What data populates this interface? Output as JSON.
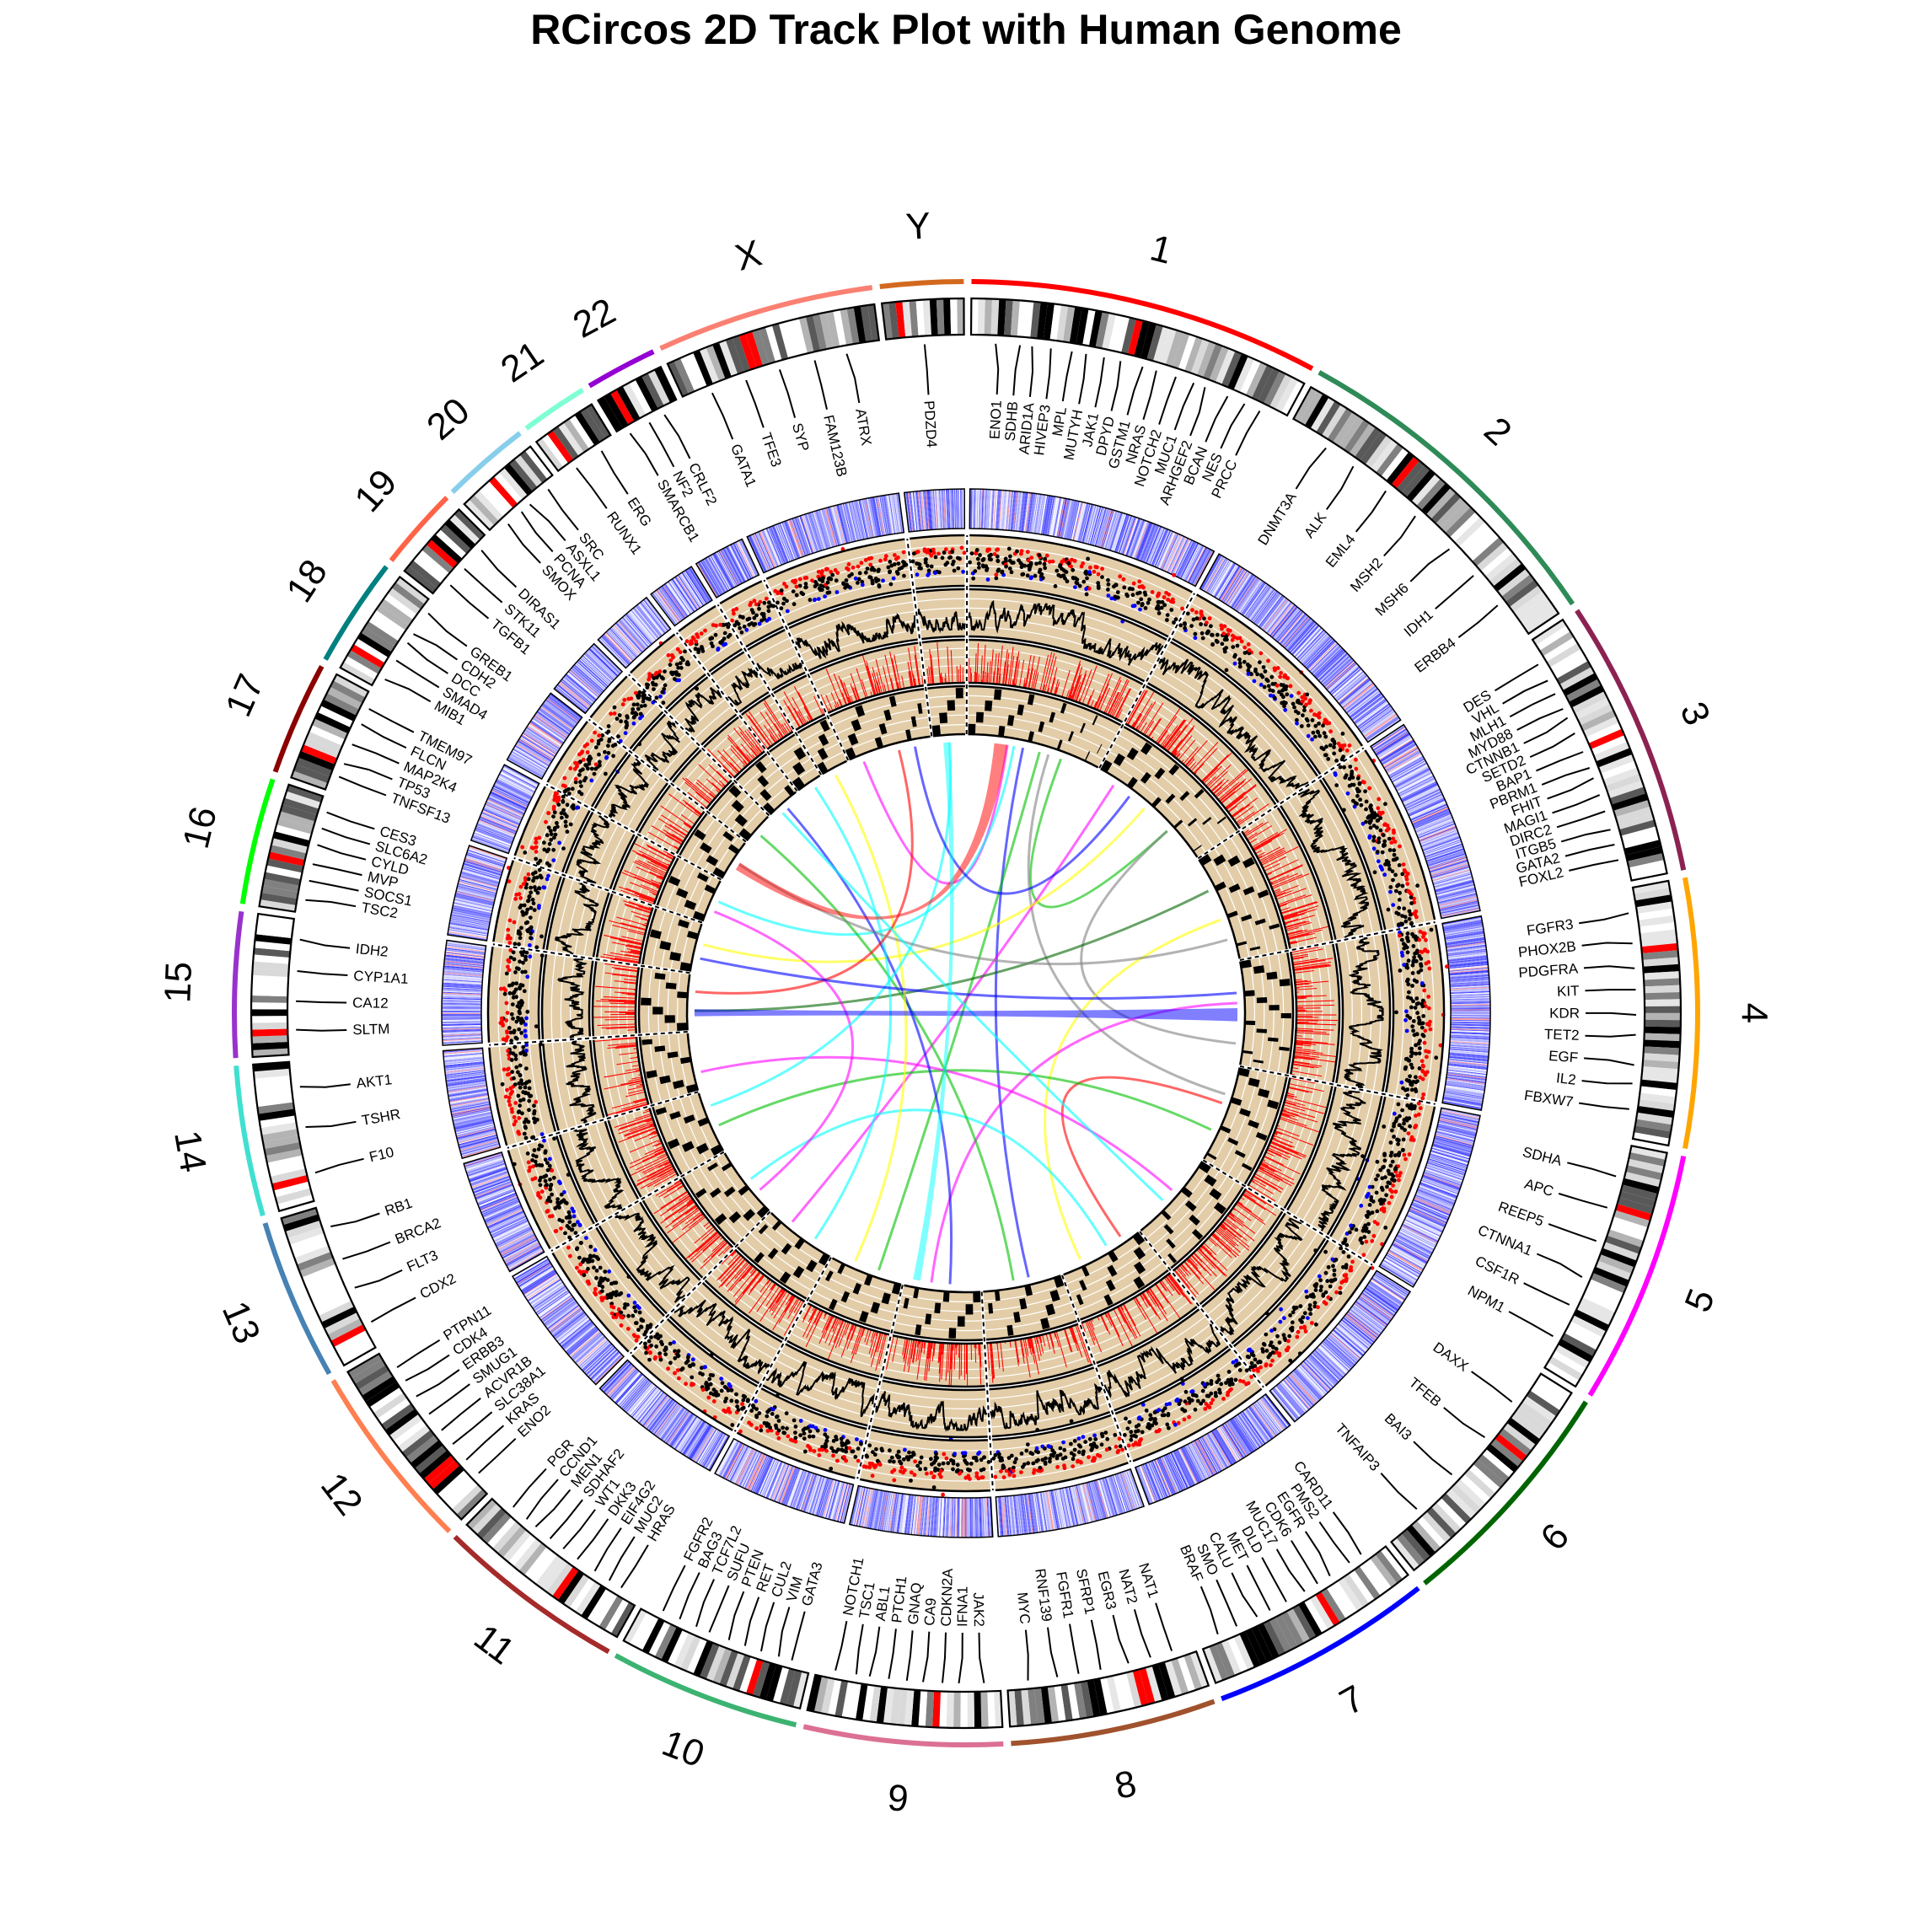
{
  "chart_data": {
    "type": "circos",
    "title": "RCircos 2D Track Plot with Human Genome",
    "genome": "Human",
    "chromosomes": [
      {
        "name": "1",
        "size": 249,
        "color": "#ff0000",
        "cen": 0.49
      },
      {
        "name": "2",
        "size": 243,
        "color": "#2e8b57",
        "cen": 0.38
      },
      {
        "name": "3",
        "size": 198,
        "color": "#8b2252",
        "cen": 0.46
      },
      {
        "name": "4",
        "size": 191,
        "color": "#ffa500",
        "cen": 0.26
      },
      {
        "name": "5",
        "size": 181,
        "color": "#ff00ff",
        "cen": 0.26
      },
      {
        "name": "6",
        "size": 171,
        "color": "#006400",
        "cen": 0.35
      },
      {
        "name": "7",
        "size": 159,
        "color": "#0000ff",
        "cen": 0.38
      },
      {
        "name": "8",
        "size": 146,
        "color": "#a0522d",
        "cen": 0.31
      },
      {
        "name": "9",
        "size": 141,
        "color": "#db7093",
        "cen": 0.35
      },
      {
        "name": "10",
        "size": 136,
        "color": "#3cb371",
        "cen": 0.29
      },
      {
        "name": "11",
        "size": 135,
        "color": "#a52a2a",
        "cen": 0.39
      },
      {
        "name": "12",
        "size": 134,
        "color": "#ff7f50",
        "cen": 0.26
      },
      {
        "name": "13",
        "size": 115,
        "color": "#4682b4",
        "cen": 0.15
      },
      {
        "name": "14",
        "size": 107,
        "color": "#40e0d0",
        "cen": 0.16
      },
      {
        "name": "15",
        "size": 103,
        "color": "#9932cc",
        "cen": 0.18
      },
      {
        "name": "16",
        "size": 90,
        "color": "#00ff00",
        "cen": 0.4
      },
      {
        "name": "17",
        "size": 81,
        "color": "#8b0000",
        "cen": 0.3
      },
      {
        "name": "18",
        "size": 78,
        "color": "#008080",
        "cen": 0.22
      },
      {
        "name": "19",
        "size": 59,
        "color": "#ff6347",
        "cen": 0.45
      },
      {
        "name": "20",
        "size": 63,
        "color": "#87ceeb",
        "cen": 0.44
      },
      {
        "name": "21",
        "size": 48,
        "color": "#7fffd4",
        "cen": 0.26
      },
      {
        "name": "22",
        "size": 51,
        "color": "#9400d3",
        "cen": 0.28
      },
      {
        "name": "X",
        "size": 155,
        "color": "#fa8072",
        "cen": 0.39
      },
      {
        "name": "Y",
        "size": 59,
        "color": "#d2691e",
        "cen": 0.2
      }
    ],
    "gene_labels": [
      {
        "chr": "1",
        "genes": [
          "ENO1",
          "SDHB",
          "ARID1A",
          "HIVEP3",
          "MPL",
          "MUTYH",
          "JAK1",
          "DPYD",
          "GSTM1",
          "NRAS",
          "NOTCH2",
          "MUC1",
          "ARHGEF2",
          "BCAN",
          "NES",
          "PRCC"
        ]
      },
      {
        "chr": "2",
        "genes": [
          "DNMT3A",
          "ALK",
          "EML4",
          "MSH2",
          "MSH6",
          "IDH1",
          "ERBB4"
        ]
      },
      {
        "chr": "3",
        "genes": [
          "DES",
          "VHL",
          "MLH1",
          "MYD88",
          "CTNNB1",
          "SETD2",
          "BAP1",
          "PBRM1",
          "FHIT",
          "MAGI1",
          "DIRC2",
          "ITGB5",
          "GATA2",
          "FOXL2"
        ]
      },
      {
        "chr": "4",
        "genes": [
          "FGFR3",
          "PHOX2B",
          "PDGFRA",
          "KIT",
          "KDR",
          "TET2",
          "EGF",
          "IL2",
          "FBXW7"
        ]
      },
      {
        "chr": "5",
        "genes": [
          "SDHA",
          "APC",
          "REEP5",
          "CTNNA1",
          "CSF1R",
          "NPM1"
        ]
      },
      {
        "chr": "6",
        "genes": [
          "DAXX",
          "TFEB",
          "BAI3",
          "TNFAIP3"
        ]
      },
      {
        "chr": "7",
        "genes": [
          "CARD11",
          "PMS2",
          "EGFR",
          "CDK6",
          "MUC17",
          "DLD",
          "MET",
          "CALU",
          "SMO",
          "BRAF"
        ]
      },
      {
        "chr": "8",
        "genes": [
          "NAT1",
          "NAT2",
          "EGR3",
          "SFRP1",
          "FGFR1",
          "RNF139",
          "MYC"
        ]
      },
      {
        "chr": "9",
        "genes": [
          "JAK2",
          "IFNA1",
          "CDKN2A",
          "CA9",
          "GNAQ",
          "PTCH1",
          "ABL1",
          "TSC1",
          "NOTCH1"
        ]
      },
      {
        "chr": "10",
        "genes": [
          "GATA3",
          "VIM",
          "CUL2",
          "RET",
          "PTEN",
          "SUFU",
          "TCF7L2",
          "BAG3",
          "FGFR2"
        ]
      },
      {
        "chr": "11",
        "genes": [
          "HRAS",
          "MUC2",
          "EIF4G2",
          "DKK3",
          "WT1",
          "SDHAF2",
          "MEN1",
          "CCND1",
          "PGR"
        ]
      },
      {
        "chr": "12",
        "genes": [
          "ENO2",
          "KRAS",
          "SLC38A1",
          "ACVR1B",
          "SMUG1",
          "ERBB3",
          "CDK4",
          "PTPN11"
        ]
      },
      {
        "chr": "13",
        "genes": [
          "CDX2",
          "FLT3",
          "BRCA2",
          "RB1"
        ]
      },
      {
        "chr": "14",
        "genes": [
          "F10",
          "TSHR",
          "AKT1"
        ]
      },
      {
        "chr": "15",
        "genes": [
          "SLTM",
          "CA12",
          "CYP1A1",
          "IDH2"
        ]
      },
      {
        "chr": "16",
        "genes": [
          "TSC2",
          "SOCS1",
          "MVP",
          "CYLD",
          "SLC6A2",
          "CES3"
        ]
      },
      {
        "chr": "17",
        "genes": [
          "TNFSF13",
          "TP53",
          "MAP2K4",
          "FLCN",
          "TMEM97"
        ]
      },
      {
        "chr": "18",
        "genes": [
          "MIB1",
          "SMAD4",
          "DCC",
          "CDH2",
          "GREB1"
        ]
      },
      {
        "chr": "19",
        "genes": [
          "TGFB1",
          "STK11",
          "DIRAS1"
        ]
      },
      {
        "chr": "20",
        "genes": [
          "SMOX",
          "PCNA",
          "ASXL1",
          "SRC"
        ]
      },
      {
        "chr": "21",
        "genes": [
          "RUNX1",
          "ERG"
        ]
      },
      {
        "chr": "22",
        "genes": [
          "SMARCB1",
          "NF2",
          "CRLF2"
        ]
      },
      {
        "chr": "X",
        "genes": [
          "GATA1",
          "TFE3",
          "SYP",
          "FAM123B",
          "ATRX"
        ]
      },
      {
        "chr": "Y",
        "genes": [
          "PDZD4"
        ]
      }
    ],
    "links": [
      {
        "a": [
          "1",
          0.3
        ],
        "b": [
          "X",
          0.15
        ],
        "color": "#ff00ff"
      },
      {
        "a": [
          "1",
          0.35
        ],
        "b": [
          "17",
          0.55
        ],
        "color": "#00ffff"
      },
      {
        "a": [
          "1",
          0.42
        ],
        "b": [
          "8",
          0.4
        ],
        "color": "#0000ff"
      },
      {
        "a": [
          "1",
          0.55
        ],
        "b": [
          "10",
          0.35
        ],
        "color": "#00c000"
      },
      {
        "a": [
          "1",
          0.62
        ],
        "b": [
          "5",
          0.3
        ],
        "color": "#808080"
      },
      {
        "a": [
          "1",
          0.72
        ],
        "b": [
          "2",
          0.7
        ],
        "color": "#00c000"
      },
      {
        "a": [
          "2",
          0.15
        ],
        "b": [
          "11",
          0.7
        ],
        "color": "#ff00ff"
      },
      {
        "a": [
          "2",
          0.45
        ],
        "b": [
          "16",
          0.6
        ],
        "color": "#ffff00"
      },
      {
        "a": [
          "2",
          0.7
        ],
        "b": [
          "4",
          0.8
        ],
        "color": "#808080"
      },
      {
        "a": [
          "3",
          0.3
        ],
        "b": [
          "15",
          0.35
        ],
        "color": "#006400"
      },
      {
        "a": [
          "3",
          0.6
        ],
        "b": [
          "7",
          0.75
        ],
        "color": "#ffff00"
      },
      {
        "a": [
          "4",
          0.4
        ],
        "b": [
          "9",
          0.65
        ],
        "color": "#ff00ff"
      },
      {
        "a": [
          "5",
          0.4
        ],
        "b": [
          "7",
          0.2
        ],
        "color": "#ff0000"
      },
      {
        "a": [
          "5",
          0.7
        ],
        "b": [
          "13",
          0.4
        ],
        "color": "#00c000"
      },
      {
        "a": [
          "6",
          0.45
        ],
        "b": [
          "14",
          0.3
        ],
        "color": "#ff00ff"
      },
      {
        "a": [
          "7",
          0.4
        ],
        "b": [
          "12",
          0.5
        ],
        "color": "#00ffff"
      },
      {
        "a": [
          "8",
          0.6
        ],
        "b": [
          "19",
          0.4
        ],
        "color": "#00c000"
      },
      {
        "a": [
          "9",
          0.4
        ],
        "b": [
          "20",
          0.5
        ],
        "color": "#0000ff"
      },
      {
        "a": [
          "10",
          0.7
        ],
        "b": [
          "22",
          0.4
        ],
        "color": "#ffff00"
      },
      {
        "a": [
          "11",
          0.3
        ],
        "b": [
          "21",
          0.6
        ],
        "color": "#00ffff"
      },
      {
        "a": [
          "12",
          0.3
        ],
        "b": [
          "17",
          0.3
        ],
        "color": "#ff00ff"
      },
      {
        "a": [
          "13",
          0.75
        ],
        "b": [
          "Y",
          0.5
        ],
        "color": "#00ffff"
      },
      {
        "a": [
          "15",
          0.7
        ],
        "b": [
          "X",
          0.6
        ],
        "color": "#ff0000"
      },
      {
        "a": [
          "16",
          0.3
        ],
        "b": [
          "4",
          0.3
        ],
        "color": "#0000ff"
      },
      {
        "a": [
          "18",
          0.5
        ],
        "b": [
          "3",
          0.8
        ],
        "color": "#808080"
      },
      {
        "a": [
          "20",
          0.3
        ],
        "b": [
          "6",
          0.6
        ],
        "color": "#00ffff"
      },
      {
        "a": [
          "X",
          0.8
        ],
        "b": [
          "2",
          0.3
        ],
        "color": "#0000ff"
      }
    ],
    "ribbons": [
      {
        "a": [
          "1",
          0.2,
          0.3
        ],
        "b": [
          "18",
          0.35,
          0.55
        ],
        "color": "#ff0000"
      },
      {
        "a": [
          "4",
          0.45,
          0.58
        ],
        "b": [
          "15",
          0.25,
          0.38
        ],
        "color": "#0000ff"
      },
      {
        "a": [
          "9",
          0.8,
          0.9
        ],
        "b": [
          "Y",
          0.3,
          0.5
        ],
        "color": "#00ffff"
      }
    ],
    "tiles": [
      {
        "chr": "3",
        "pos": 0.5
      },
      {
        "chr": "5",
        "pos": 0.5
      },
      {
        "chr": "7",
        "pos": 0.5
      },
      {
        "chr": "10",
        "pos": 0.5
      },
      {
        "chr": "13",
        "pos": 0.5
      },
      {
        "chr": "16",
        "pos": 0.5
      },
      {
        "chr": "19",
        "pos": 0.5
      },
      {
        "chr": "22",
        "pos": 0.5
      }
    ]
  }
}
